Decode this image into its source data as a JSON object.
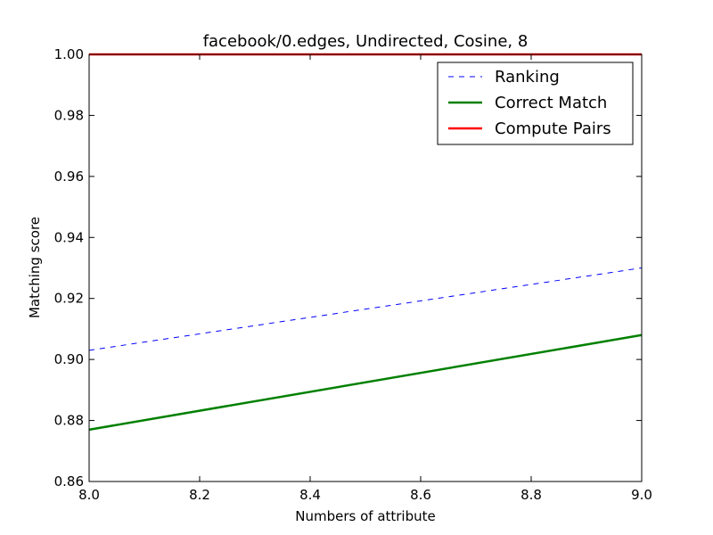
{
  "chart_data": {
    "type": "line",
    "title": "facebook/0.edges, Undirected, Cosine, 8",
    "xlabel": "Numbers of attribute",
    "ylabel": "Matching score",
    "xlim": [
      8.0,
      9.0
    ],
    "ylim": [
      0.86,
      1.0
    ],
    "xticks": [
      "8.0",
      "8.2",
      "8.4",
      "8.6",
      "8.8",
      "9.0"
    ],
    "yticks": [
      "0.86",
      "0.88",
      "0.90",
      "0.92",
      "0.94",
      "0.96",
      "0.98",
      "1.00"
    ],
    "grid": false,
    "legend_position": "top-right",
    "series": [
      {
        "name": "Ranking",
        "color": "#0000ff",
        "style": "dashed",
        "x": [
          8.0,
          9.0
        ],
        "y": [
          0.903,
          0.93
        ]
      },
      {
        "name": "Correct Match",
        "color": "#008000",
        "style": "solid",
        "x": [
          8.0,
          9.0
        ],
        "y": [
          0.877,
          0.908
        ]
      },
      {
        "name": "Compute Pairs",
        "color": "#ff0000",
        "style": "solid",
        "x": [
          8.0,
          9.0
        ],
        "y": [
          1.0,
          1.0
        ]
      }
    ]
  }
}
